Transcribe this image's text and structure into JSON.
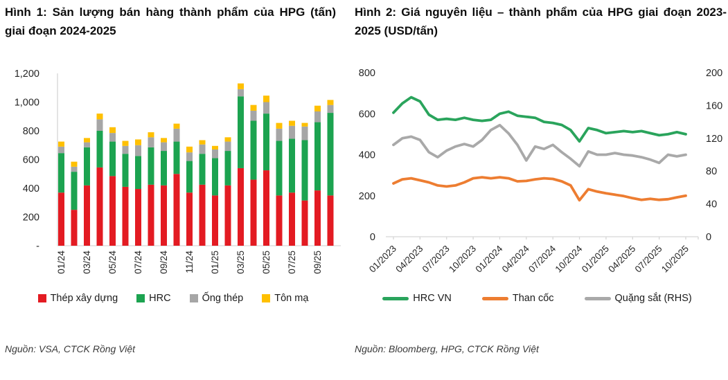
{
  "figure1": {
    "title": "Hình 1: Sản lượng bán hàng thành phẩm của HPG (tấn) giai đoạn 2024-2025",
    "source": "Nguồn: VSA, CTCK Rồng Việt"
  },
  "figure2": {
    "title": "Hình 2: Giá nguyên liệu – thành phẩm của HPG giai đoạn 2023-2025 (USD/tấn)",
    "source": "Nguồn: Bloomberg, HPG, CTCK Rồng Việt"
  },
  "chart_data": [
    {
      "type": "bar",
      "stacked": true,
      "title": "Sản lượng bán hàng thành phẩm của HPG (tấn) giai đoạn 2024-2025",
      "categories": [
        "01/24",
        "02/24",
        "03/24",
        "04/24",
        "05/24",
        "06/24",
        "07/24",
        "08/24",
        "09/24",
        "10/24",
        "11/24",
        "12/24",
        "01/25",
        "02/25",
        "03/25",
        "04/25",
        "05/25",
        "06/25",
        "07/25",
        "08/25",
        "09/25",
        "10/25"
      ],
      "x_label_every": 2,
      "ylim": [
        0,
        1200
      ],
      "yticks": {
        "labels": [
          "1,200",
          "1,000",
          "800",
          "600",
          "400",
          "200",
          "-"
        ],
        "values": [
          1200,
          1000,
          800,
          600,
          400,
          200,
          0
        ]
      },
      "grid": false,
      "legend_position": "bottom",
      "series": [
        {
          "name": "Thép xây dựng",
          "color": "#e31b22",
          "values": [
            370,
            250,
            420,
            545,
            485,
            410,
            395,
            425,
            420,
            500,
            370,
            425,
            350,
            420,
            540,
            460,
            525,
            350,
            370,
            315,
            385,
            350
          ]
        },
        {
          "name": "HRC",
          "color": "#1ca350",
          "values": [
            275,
            265,
            265,
            255,
            240,
            230,
            230,
            260,
            240,
            225,
            220,
            215,
            260,
            240,
            500,
            410,
            395,
            380,
            375,
            420,
            475,
            575
          ]
        },
        {
          "name": "Ống thép",
          "color": "#a6a6a6",
          "values": [
            45,
            35,
            35,
            80,
            60,
            55,
            75,
            70,
            60,
            90,
            60,
            65,
            60,
            65,
            50,
            70,
            80,
            85,
            90,
            95,
            75,
            55
          ]
        },
        {
          "name": "Tôn mạ",
          "color": "#ffc000",
          "values": [
            35,
            35,
            30,
            40,
            40,
            35,
            40,
            35,
            30,
            35,
            40,
            30,
            25,
            30,
            40,
            40,
            45,
            40,
            35,
            25,
            40,
            35
          ]
        }
      ]
    },
    {
      "type": "line",
      "title": "Giá nguyên liệu – thành phẩm của HPG giai đoạn 2023-2025 (USD/tấn)",
      "x": [
        "01/2023",
        "02/2023",
        "03/2023",
        "04/2023",
        "05/2023",
        "06/2023",
        "07/2023",
        "08/2023",
        "09/2023",
        "10/2023",
        "11/2023",
        "12/2023",
        "01/2024",
        "02/2024",
        "03/2024",
        "04/2024",
        "05/2024",
        "06/2024",
        "07/2024",
        "08/2024",
        "09/2024",
        "10/2024",
        "11/2024",
        "12/2024",
        "01/2025",
        "02/2025",
        "03/2025",
        "04/2025",
        "05/2025",
        "06/2025",
        "07/2025",
        "08/2025",
        "09/2025",
        "10/2025"
      ],
      "xticks": [
        "01/2023",
        "04/2023",
        "07/2023",
        "10/2023",
        "01/2024",
        "04/2024",
        "07/2024",
        "10/2024",
        "01/2025",
        "04/2025",
        "07/2025",
        "10/2025"
      ],
      "ylim_left": [
        0,
        800
      ],
      "ylim_right": [
        0,
        200
      ],
      "yticks_left": [
        "800",
        "600",
        "400",
        "200",
        "0"
      ],
      "yticks_right": [
        "200",
        "160",
        "120",
        "80",
        "40",
        "0"
      ],
      "grid": false,
      "legend_position": "bottom",
      "series": [
        {
          "name": "HRC VN",
          "axis": "left",
          "color": "#2aa45c",
          "values": [
            605,
            650,
            680,
            660,
            595,
            570,
            575,
            570,
            580,
            570,
            565,
            570,
            600,
            610,
            590,
            585,
            580,
            560,
            555,
            545,
            520,
            465,
            530,
            520,
            505,
            510,
            515,
            510,
            515,
            505,
            495,
            500,
            510,
            500
          ]
        },
        {
          "name": "Than cốc",
          "axis": "left",
          "color": "#ed7d31",
          "values": [
            260,
            280,
            285,
            275,
            265,
            250,
            245,
            250,
            265,
            285,
            290,
            285,
            290,
            285,
            270,
            272,
            280,
            285,
            282,
            270,
            250,
            178,
            232,
            220,
            212,
            205,
            198,
            188,
            180,
            185,
            180,
            183,
            192,
            200
          ]
        },
        {
          "name": "Quặng sắt (RHS)",
          "axis": "right",
          "color": "#a9a9a9",
          "values": [
            112,
            120,
            122,
            118,
            103,
            97,
            105,
            110,
            113,
            110,
            118,
            130,
            136,
            126,
            112,
            93,
            110,
            107,
            112,
            103,
            95,
            86,
            104,
            100,
            100,
            102,
            100,
            99,
            97,
            94,
            90,
            100,
            98,
            100
          ]
        }
      ]
    }
  ]
}
